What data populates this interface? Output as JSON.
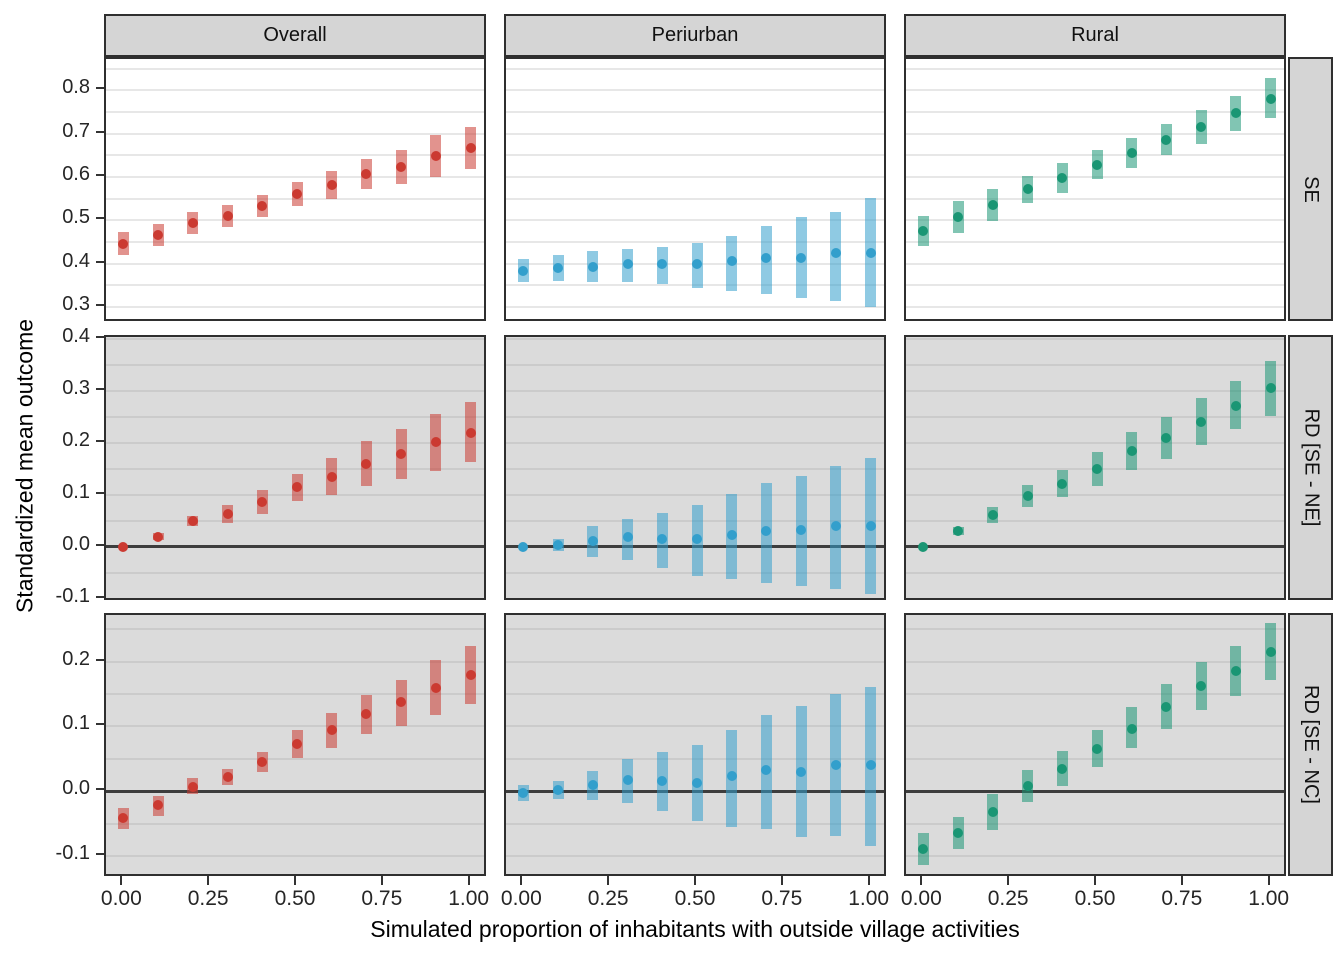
{
  "figure": {
    "x_axis": {
      "title": "Simulated proportion of inhabitants with outside village activities",
      "ticks": [
        0,
        0.25,
        0.5,
        0.75,
        1
      ],
      "tick_labels": [
        "0.00",
        "0.25",
        "0.50",
        "0.75",
        "1.00"
      ]
    },
    "y_axis": {
      "title": "Standardized mean outcome"
    },
    "facet_columns": [
      "Overall",
      "Periurban",
      "Rural"
    ],
    "facet_rows": [
      "SE",
      "RD [SE - NE]",
      "RD [SE - NC]"
    ],
    "colors": {
      "Overall": "#CB3A31",
      "Periurban": "#339FCC",
      "Rural": "#1A9674"
    },
    "row_axes": [
      {
        "label": "SE",
        "ylim": [
          0.263,
          0.872
        ],
        "yticks": [
          0.3,
          0.4,
          0.5,
          0.6,
          0.7,
          0.8
        ],
        "grid_step": 0.05,
        "background": "#FFFFFF",
        "grid_color": "#E7E7E7",
        "zero_line": false
      },
      {
        "label": "RD [SE - NE]",
        "ylim": [
          -0.106,
          0.404
        ],
        "yticks": [
          -0.1,
          0.0,
          0.1,
          0.2,
          0.3,
          0.4
        ],
        "grid_step": 0.05,
        "background": "#DBDBDB",
        "grid_color": "#CBCBCB",
        "zero_line": true
      },
      {
        "label": "RD [SE - NC]",
        "ylim": [
          -0.134,
          0.272
        ],
        "yticks": [
          -0.1,
          0.0,
          0.1,
          0.2
        ],
        "grid_step": 0.05,
        "background": "#DBDBDB",
        "grid_color": "#CBCBCB",
        "zero_line": true
      }
    ]
  },
  "chart_data": [
    {
      "type": "pointrange",
      "facet_row": "SE",
      "facet_col": "Overall",
      "row": 0,
      "col": 0,
      "x": [
        0,
        0.1,
        0.2,
        0.3,
        0.4,
        0.5,
        0.6,
        0.7,
        0.8,
        0.9,
        1.0
      ],
      "y": [
        0.446,
        0.466,
        0.494,
        0.51,
        0.533,
        0.561,
        0.581,
        0.606,
        0.623,
        0.648,
        0.667
      ],
      "ymin": [
        0.419,
        0.441,
        0.469,
        0.485,
        0.508,
        0.534,
        0.549,
        0.571,
        0.584,
        0.6,
        0.619
      ],
      "ymax": [
        0.473,
        0.491,
        0.519,
        0.535,
        0.558,
        0.588,
        0.613,
        0.641,
        0.662,
        0.696,
        0.715
      ]
    },
    {
      "type": "pointrange",
      "facet_row": "SE",
      "facet_col": "Periurban",
      "row": 0,
      "col": 1,
      "x": [
        0,
        0.1,
        0.2,
        0.3,
        0.4,
        0.5,
        0.6,
        0.7,
        0.8,
        0.9,
        1.0
      ],
      "y": [
        0.384,
        0.39,
        0.393,
        0.4,
        0.4,
        0.399,
        0.405,
        0.413,
        0.414,
        0.424,
        0.425
      ],
      "ymin": [
        0.357,
        0.36,
        0.358,
        0.357,
        0.352,
        0.344,
        0.337,
        0.33,
        0.321,
        0.313,
        0.299
      ],
      "ymax": [
        0.411,
        0.42,
        0.428,
        0.433,
        0.439,
        0.448,
        0.464,
        0.487,
        0.507,
        0.518,
        0.552
      ]
    },
    {
      "type": "pointrange",
      "facet_row": "SE",
      "facet_col": "Rural",
      "row": 0,
      "col": 2,
      "x": [
        0,
        0.1,
        0.2,
        0.3,
        0.4,
        0.5,
        0.6,
        0.7,
        0.8,
        0.9,
        1.0
      ],
      "y": [
        0.475,
        0.507,
        0.535,
        0.571,
        0.598,
        0.627,
        0.655,
        0.686,
        0.715,
        0.747,
        0.78
      ],
      "ymin": [
        0.441,
        0.47,
        0.498,
        0.539,
        0.564,
        0.594,
        0.62,
        0.65,
        0.676,
        0.707,
        0.736
      ],
      "ymax": [
        0.509,
        0.544,
        0.571,
        0.603,
        0.631,
        0.661,
        0.69,
        0.721,
        0.754,
        0.787,
        0.829
      ]
    },
    {
      "type": "pointrange",
      "facet_row": "RD [SE - NE]",
      "facet_col": "Overall",
      "row": 1,
      "col": 0,
      "x": [
        0,
        0.1,
        0.2,
        0.3,
        0.4,
        0.5,
        0.6,
        0.7,
        0.8,
        0.9,
        1.0
      ],
      "y": [
        0.0,
        0.02,
        0.05,
        0.063,
        0.086,
        0.115,
        0.135,
        0.16,
        0.178,
        0.201,
        0.22
      ],
      "ymin": [
        0.0,
        0.014,
        0.04,
        0.046,
        0.063,
        0.088,
        0.1,
        0.118,
        0.13,
        0.147,
        0.163
      ],
      "ymax": [
        0.0,
        0.026,
        0.06,
        0.08,
        0.11,
        0.141,
        0.171,
        0.203,
        0.226,
        0.255,
        0.278
      ]
    },
    {
      "type": "pointrange",
      "facet_row": "RD [SE - NE]",
      "facet_col": "Periurban",
      "row": 1,
      "col": 1,
      "x": [
        0,
        0.1,
        0.2,
        0.3,
        0.4,
        0.5,
        0.6,
        0.7,
        0.8,
        0.9,
        1.0
      ],
      "y": [
        0.0,
        0.004,
        0.012,
        0.02,
        0.016,
        0.015,
        0.022,
        0.03,
        0.032,
        0.04,
        0.04
      ],
      "ymin": [
        0.0,
        -0.008,
        -0.019,
        -0.026,
        -0.041,
        -0.056,
        -0.062,
        -0.069,
        -0.076,
        -0.081,
        -0.091
      ],
      "ymax": [
        0.0,
        0.016,
        0.041,
        0.054,
        0.066,
        0.081,
        0.101,
        0.123,
        0.136,
        0.156,
        0.171
      ]
    },
    {
      "type": "pointrange",
      "facet_row": "RD [SE - NE]",
      "facet_col": "Rural",
      "row": 1,
      "col": 2,
      "x": [
        0,
        0.1,
        0.2,
        0.3,
        0.4,
        0.5,
        0.6,
        0.7,
        0.8,
        0.9,
        1.0
      ],
      "y": [
        0.0,
        0.03,
        0.061,
        0.098,
        0.122,
        0.15,
        0.185,
        0.21,
        0.24,
        0.272,
        0.305
      ],
      "ymin": [
        0.0,
        0.022,
        0.046,
        0.077,
        0.096,
        0.118,
        0.148,
        0.169,
        0.196,
        0.226,
        0.252
      ],
      "ymax": [
        0.0,
        0.038,
        0.077,
        0.119,
        0.149,
        0.183,
        0.221,
        0.251,
        0.286,
        0.319,
        0.358
      ]
    },
    {
      "type": "pointrange",
      "facet_row": "RD [SE - NC]",
      "facet_col": "Overall",
      "row": 2,
      "col": 0,
      "x": [
        0,
        0.1,
        0.2,
        0.3,
        0.4,
        0.5,
        0.6,
        0.7,
        0.8,
        0.9,
        1.0
      ],
      "y": [
        -0.042,
        -0.022,
        0.007,
        0.022,
        0.045,
        0.073,
        0.095,
        0.119,
        0.137,
        0.16,
        0.179
      ],
      "ymin": [
        -0.058,
        -0.038,
        -0.005,
        0.009,
        0.029,
        0.052,
        0.067,
        0.088,
        0.101,
        0.118,
        0.134
      ],
      "ymax": [
        -0.026,
        -0.007,
        0.02,
        0.035,
        0.061,
        0.094,
        0.121,
        0.148,
        0.172,
        0.203,
        0.224
      ]
    },
    {
      "type": "pointrange",
      "facet_row": "RD [SE - NC]",
      "facet_col": "Periurban",
      "row": 2,
      "col": 1,
      "x": [
        0,
        0.1,
        0.2,
        0.3,
        0.4,
        0.5,
        0.6,
        0.7,
        0.8,
        0.9,
        1.0
      ],
      "y": [
        -0.003,
        0.002,
        0.01,
        0.018,
        0.015,
        0.013,
        0.024,
        0.032,
        0.03,
        0.04,
        0.041
      ],
      "ymin": [
        -0.015,
        -0.012,
        -0.013,
        -0.019,
        -0.03,
        -0.046,
        -0.055,
        -0.058,
        -0.07,
        -0.069,
        -0.084
      ],
      "ymax": [
        0.01,
        0.015,
        0.031,
        0.05,
        0.06,
        0.072,
        0.095,
        0.118,
        0.131,
        0.15,
        0.161
      ]
    },
    {
      "type": "pointrange",
      "facet_row": "RD [SE - NC]",
      "facet_col": "Rural",
      "row": 2,
      "col": 2,
      "x": [
        0,
        0.1,
        0.2,
        0.3,
        0.4,
        0.5,
        0.6,
        0.7,
        0.8,
        0.9,
        1.0
      ],
      "y": [
        -0.089,
        -0.065,
        -0.032,
        0.008,
        0.035,
        0.065,
        0.096,
        0.13,
        0.162,
        0.185,
        0.215
      ],
      "ymin": [
        -0.114,
        -0.09,
        -0.06,
        -0.017,
        0.008,
        0.038,
        0.066,
        0.096,
        0.125,
        0.147,
        0.171
      ],
      "ymax": [
        -0.064,
        -0.04,
        -0.005,
        0.032,
        0.062,
        0.094,
        0.13,
        0.166,
        0.199,
        0.224,
        0.26
      ]
    }
  ]
}
